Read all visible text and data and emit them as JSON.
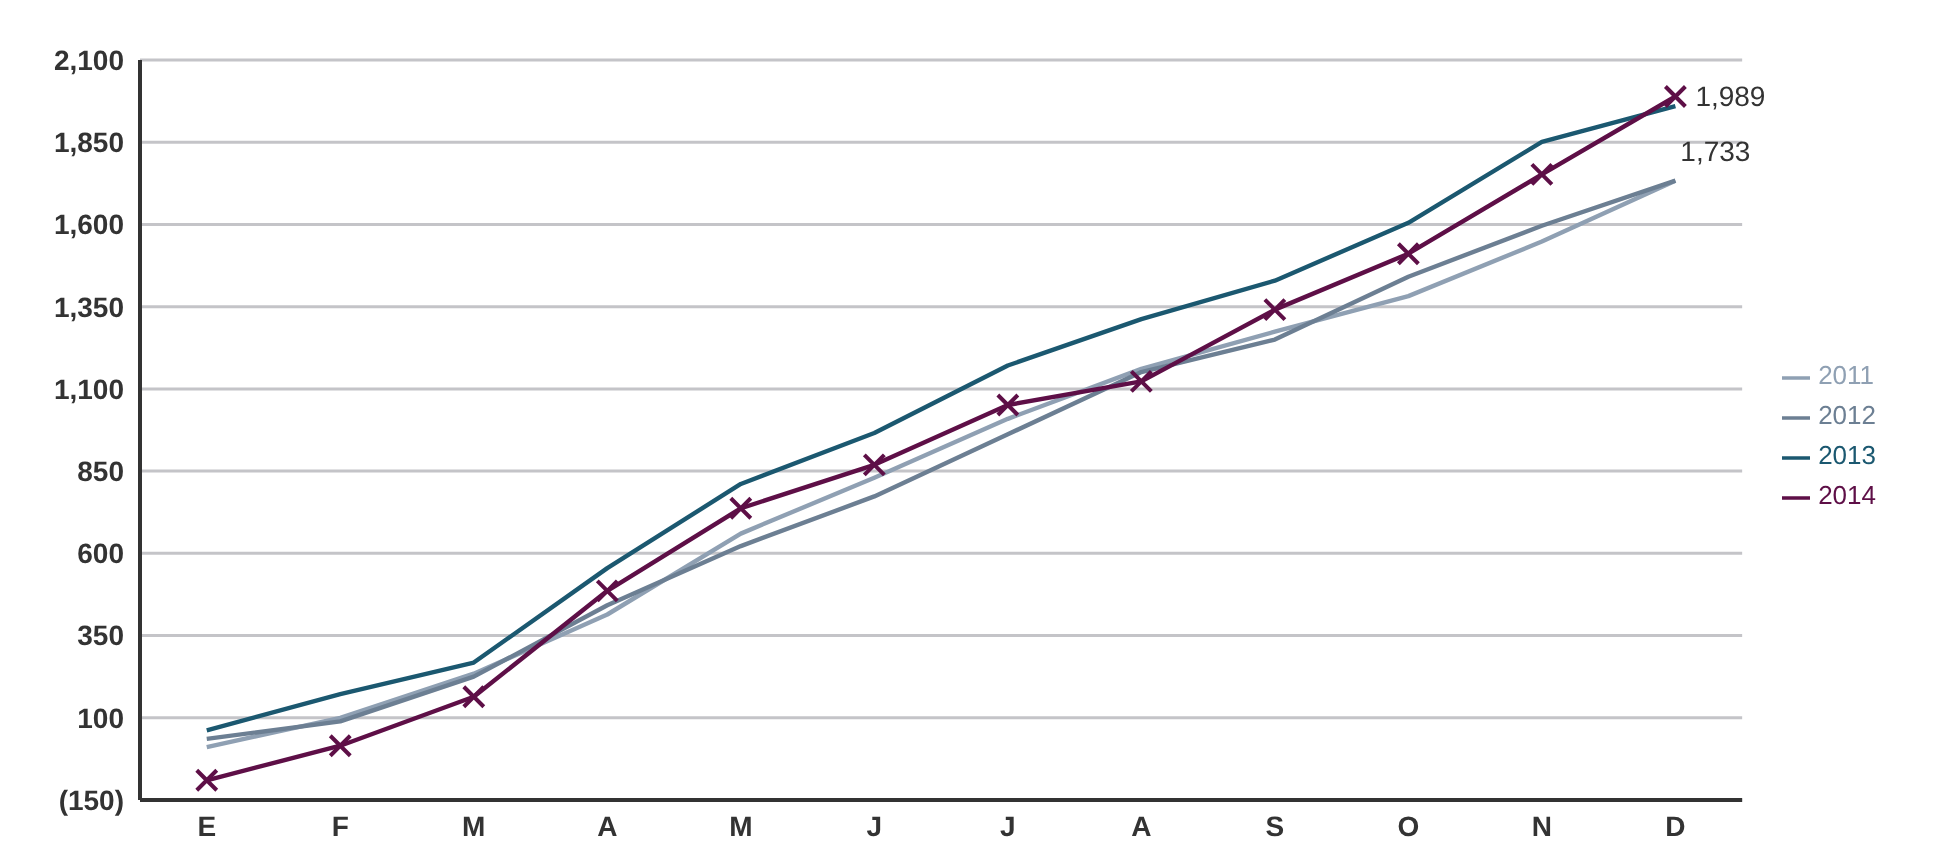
{
  "chart_data": {
    "type": "line",
    "categories": [
      "E",
      "F",
      "M",
      "A",
      "M",
      "J",
      "J",
      "A",
      "S",
      "O",
      "N",
      "D"
    ],
    "series": [
      {
        "name": "2011",
        "color": "#8fa0b3",
        "marker": "none",
        "values": [
          11,
          100,
          234,
          414,
          660,
          830,
          1009,
          1161,
          1274,
          1382,
          1548,
          1733
        ]
      },
      {
        "name": "2012",
        "color": "#6c7f93",
        "marker": "none",
        "values": [
          36,
          89,
          225,
          442,
          622,
          773,
          962,
          1151,
          1250,
          1441,
          1596,
          1733
        ]
      },
      {
        "name": "2013",
        "color": "#1b5870",
        "marker": "none",
        "values": [
          62,
          172,
          268,
          555,
          811,
          966,
          1171,
          1312,
          1429,
          1605,
          1851,
          1960
        ]
      },
      {
        "name": "2014",
        "color": "#5e0f47",
        "marker": "cross",
        "values": [
          -90,
          15,
          164,
          486,
          737,
          869,
          1051,
          1123,
          1341,
          1511,
          1752,
          1989
        ]
      }
    ],
    "ylim": [
      -150,
      2100
    ],
    "yticks": [
      {
        "value": -150,
        "label": "(150)"
      },
      {
        "value": 100,
        "label": "100"
      },
      {
        "value": 350,
        "label": "350"
      },
      {
        "value": 600,
        "label": "600"
      },
      {
        "value": 850,
        "label": "850"
      },
      {
        "value": 1100,
        "label": "1,100"
      },
      {
        "value": 1350,
        "label": "1,350"
      },
      {
        "value": 1600,
        "label": "1,600"
      },
      {
        "value": 1850,
        "label": "1,850"
      },
      {
        "value": 2100,
        "label": "2,100"
      }
    ],
    "annotations": [
      {
        "text": "1,989",
        "x": "D",
        "y": 1989
      },
      {
        "text": "1,733",
        "x": "D",
        "y": 1733
      }
    ],
    "grid": "y",
    "legend": "right",
    "line_style": "solid"
  }
}
